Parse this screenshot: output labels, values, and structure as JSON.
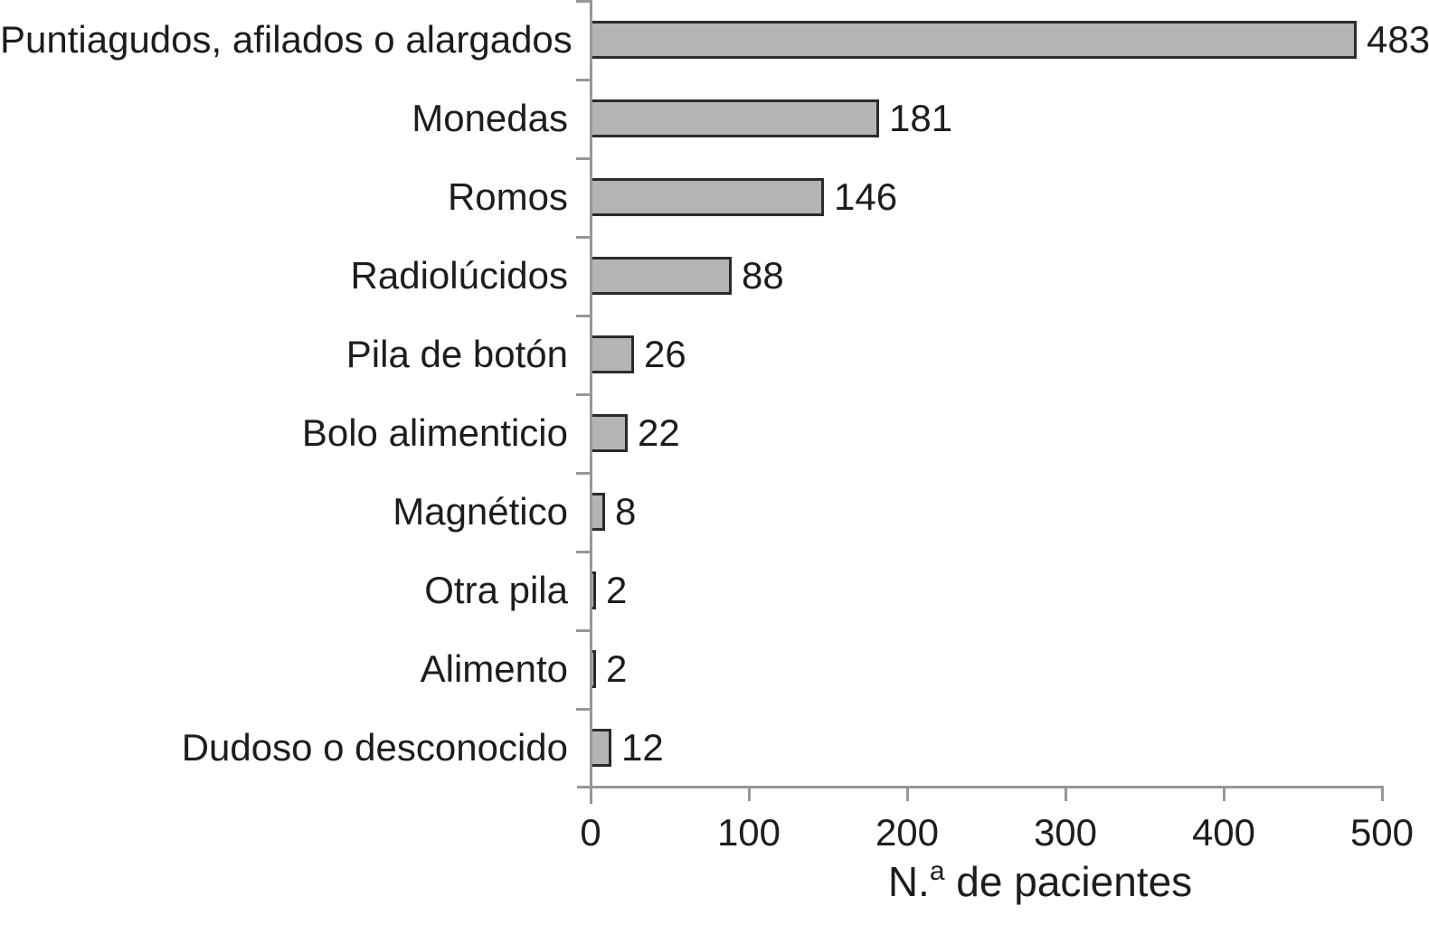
{
  "chart_data": {
    "type": "bar",
    "orientation": "horizontal",
    "title": "",
    "categories": [
      "Puntiagudos, afilados o alargados",
      "Monedas",
      "Romos",
      "Radiolúcidos",
      "Pila de botón",
      "Bolo alimenticio",
      "Magnético",
      "Otra pila",
      "Alimento",
      "Dudoso o desconocido"
    ],
    "values": [
      483,
      181,
      146,
      88,
      26,
      22,
      8,
      2,
      2,
      12
    ],
    "data_labels": [
      "483",
      "181",
      "146",
      "88",
      "26",
      "22",
      "8",
      "2",
      "2",
      "12"
    ],
    "xlabel": "N.ª de pacientes",
    "xlabel_parts": {
      "prefix": "N.",
      "superscript": "a",
      "rest": " de pacientes"
    },
    "xticks": [
      "0",
      "100",
      "200",
      "300",
      "400",
      "500"
    ],
    "xlim": [
      0,
      500
    ],
    "grid": false,
    "legend": null,
    "colors": {
      "bar_fill": "#b4b4b4",
      "bar_border": "#2b2b2b",
      "axis_line": "#979797",
      "text": "#1d1d1d",
      "background": "#ffffff"
    }
  }
}
